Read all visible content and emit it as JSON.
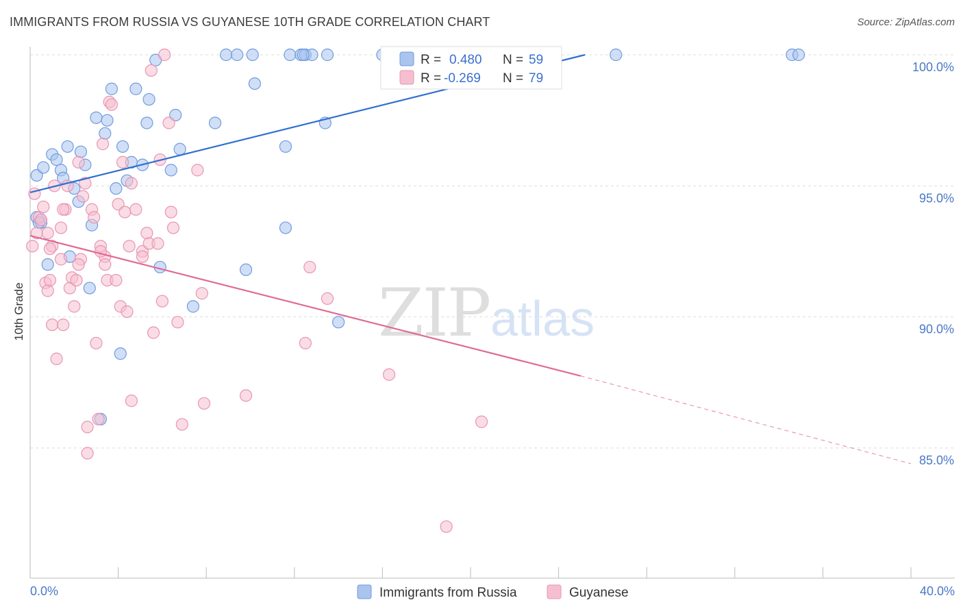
{
  "title": "IMMIGRANTS FROM RUSSIA VS GUYANESE 10TH GRADE CORRELATION CHART",
  "source": "Source: ZipAtlas.com",
  "watermark": {
    "zip": "ZIP",
    "atlas": "atlas"
  },
  "colors": {
    "blue_fill": "#aac4ee",
    "blue_stroke": "#6f9be0",
    "blue_line": "#2f6fcf",
    "pink_fill": "#f6bfd0",
    "pink_stroke": "#e895b1",
    "pink_line": "#e06a94",
    "grid": "#dddddd",
    "axis_label": "#4a78c8"
  },
  "legend": {
    "r_label": "R =",
    "n_label": "N =",
    "rows": [
      {
        "r": "0.480",
        "n": "59",
        "series": "blue"
      },
      {
        "r": "-0.269",
        "n": "79",
        "series": "pink"
      }
    ]
  },
  "chart_data": {
    "type": "scatter",
    "title": "IMMIGRANTS FROM RUSSIA VS GUYANESE 10TH GRADE CORRELATION CHART",
    "xlabel": "",
    "ylabel": "10th Grade",
    "xlim": [
      0,
      40
    ],
    "ylim": [
      80.5,
      100.6
    ],
    "x_tick_labels": [
      {
        "value": 0,
        "label": "0.0%"
      },
      {
        "value": 40,
        "label": "40.0%"
      }
    ],
    "y_ticks": [
      {
        "value": 100,
        "label": "100.0%"
      },
      {
        "value": 95,
        "label": "95.0%"
      },
      {
        "value": 90,
        "label": "90.0%"
      },
      {
        "value": 85,
        "label": "85.0%"
      }
    ],
    "grid": true,
    "legend_position": "top-center",
    "series": [
      {
        "name": "Immigrants from Russia",
        "color": "#aac4ee",
        "trend": {
          "x0": 0,
          "y0": 94.75,
          "x1": 25.2,
          "y1": 100.0,
          "dashed_to": null
        },
        "points": [
          [
            0.3,
            95.4
          ],
          [
            0.3,
            93.8
          ],
          [
            0.5,
            93.6
          ],
          [
            0.6,
            95.7
          ],
          [
            0.8,
            92.0
          ],
          [
            1.0,
            96.2
          ],
          [
            1.2,
            96.0
          ],
          [
            1.4,
            95.6
          ],
          [
            1.5,
            95.3
          ],
          [
            1.7,
            96.5
          ],
          [
            1.8,
            92.3
          ],
          [
            2.0,
            94.9
          ],
          [
            2.2,
            94.4
          ],
          [
            2.3,
            96.3
          ],
          [
            2.5,
            95.8
          ],
          [
            2.7,
            91.1
          ],
          [
            2.8,
            93.5
          ],
          [
            3.0,
            97.6
          ],
          [
            3.2,
            86.1
          ],
          [
            3.4,
            97.0
          ],
          [
            3.5,
            97.5
          ],
          [
            3.7,
            98.7
          ],
          [
            3.9,
            94.9
          ],
          [
            4.1,
            88.6
          ],
          [
            4.2,
            96.5
          ],
          [
            4.4,
            95.2
          ],
          [
            4.6,
            95.9
          ],
          [
            4.8,
            98.7
          ],
          [
            5.1,
            95.8
          ],
          [
            5.3,
            97.4
          ],
          [
            5.4,
            98.3
          ],
          [
            5.7,
            99.8
          ],
          [
            5.9,
            91.9
          ],
          [
            6.4,
            95.6
          ],
          [
            6.6,
            97.7
          ],
          [
            6.8,
            96.4
          ],
          [
            7.4,
            90.4
          ],
          [
            8.4,
            97.4
          ],
          [
            8.9,
            100.0
          ],
          [
            9.4,
            100.0
          ],
          [
            9.8,
            91.8
          ],
          [
            10.1,
            100.0
          ],
          [
            10.2,
            98.9
          ],
          [
            11.6,
            96.5
          ],
          [
            11.6,
            93.4
          ],
          [
            11.8,
            100.0
          ],
          [
            12.3,
            100.0
          ],
          [
            12.5,
            100.0
          ],
          [
            12.8,
            100.0
          ],
          [
            13.4,
            97.4
          ],
          [
            13.5,
            100.0
          ],
          [
            14.0,
            89.8
          ],
          [
            16.0,
            100.0
          ],
          [
            21.5,
            100.0
          ],
          [
            26.6,
            100.0
          ],
          [
            34.6,
            100.0
          ],
          [
            34.9,
            100.0
          ],
          [
            12.4,
            100.0
          ],
          [
            0.4,
            93.6
          ]
        ]
      },
      {
        "name": "Guyanese",
        "color": "#f6bfd0",
        "trend": {
          "x0": 0,
          "y0": 93.1,
          "x1": 25.0,
          "y1": 87.75,
          "dashed_to": [
            40,
            84.4
          ]
        },
        "points": [
          [
            0.1,
            92.7
          ],
          [
            0.2,
            94.7
          ],
          [
            0.3,
            93.2
          ],
          [
            0.4,
            93.8
          ],
          [
            0.5,
            93.7
          ],
          [
            0.6,
            94.2
          ],
          [
            0.7,
            91.3
          ],
          [
            0.8,
            93.2
          ],
          [
            0.8,
            91.0
          ],
          [
            0.9,
            91.4
          ],
          [
            1.0,
            92.7
          ],
          [
            1.0,
            89.7
          ],
          [
            1.1,
            95.0
          ],
          [
            1.2,
            88.4
          ],
          [
            1.4,
            92.2
          ],
          [
            1.4,
            93.4
          ],
          [
            1.5,
            89.7
          ],
          [
            1.6,
            94.1
          ],
          [
            1.7,
            95.0
          ],
          [
            1.8,
            91.1
          ],
          [
            1.9,
            91.5
          ],
          [
            2.0,
            90.4
          ],
          [
            2.1,
            91.4
          ],
          [
            2.2,
            95.9
          ],
          [
            2.3,
            92.2
          ],
          [
            2.4,
            94.6
          ],
          [
            2.5,
            95.1
          ],
          [
            2.6,
            85.8
          ],
          [
            2.6,
            84.8
          ],
          [
            2.8,
            94.1
          ],
          [
            2.9,
            93.8
          ],
          [
            3.0,
            89.0
          ],
          [
            3.1,
            86.1
          ],
          [
            3.2,
            92.7
          ],
          [
            3.3,
            96.6
          ],
          [
            3.4,
            92.3
          ],
          [
            3.4,
            92.0
          ],
          [
            3.5,
            91.4
          ],
          [
            3.6,
            98.2
          ],
          [
            3.7,
            98.1
          ],
          [
            3.9,
            91.4
          ],
          [
            4.0,
            94.3
          ],
          [
            4.1,
            90.4
          ],
          [
            4.2,
            95.9
          ],
          [
            4.3,
            94.0
          ],
          [
            4.4,
            90.2
          ],
          [
            4.5,
            92.7
          ],
          [
            4.6,
            95.1
          ],
          [
            4.6,
            86.8
          ],
          [
            4.8,
            94.1
          ],
          [
            5.1,
            92.5
          ],
          [
            5.3,
            93.2
          ],
          [
            5.4,
            92.8
          ],
          [
            5.5,
            99.4
          ],
          [
            5.6,
            89.4
          ],
          [
            5.8,
            92.8
          ],
          [
            5.9,
            96.0
          ],
          [
            6.0,
            90.6
          ],
          [
            6.1,
            100.0
          ],
          [
            6.3,
            97.4
          ],
          [
            6.4,
            94.0
          ],
          [
            6.5,
            93.4
          ],
          [
            6.7,
            89.8
          ],
          [
            6.9,
            85.9
          ],
          [
            7.6,
            95.6
          ],
          [
            7.8,
            90.9
          ],
          [
            7.9,
            86.7
          ],
          [
            9.8,
            87.0
          ],
          [
            12.5,
            89.0
          ],
          [
            12.7,
            91.9
          ],
          [
            13.5,
            90.7
          ],
          [
            16.3,
            87.8
          ],
          [
            18.9,
            82.0
          ],
          [
            20.5,
            86.0
          ],
          [
            0.9,
            92.6
          ],
          [
            2.2,
            92.0
          ],
          [
            3.2,
            92.5
          ],
          [
            5.1,
            92.3
          ],
          [
            1.5,
            94.1
          ]
        ]
      }
    ]
  },
  "bottom_legend": [
    {
      "label": "Immigrants from Russia",
      "series": "blue"
    },
    {
      "label": "Guyanese",
      "series": "pink"
    }
  ]
}
